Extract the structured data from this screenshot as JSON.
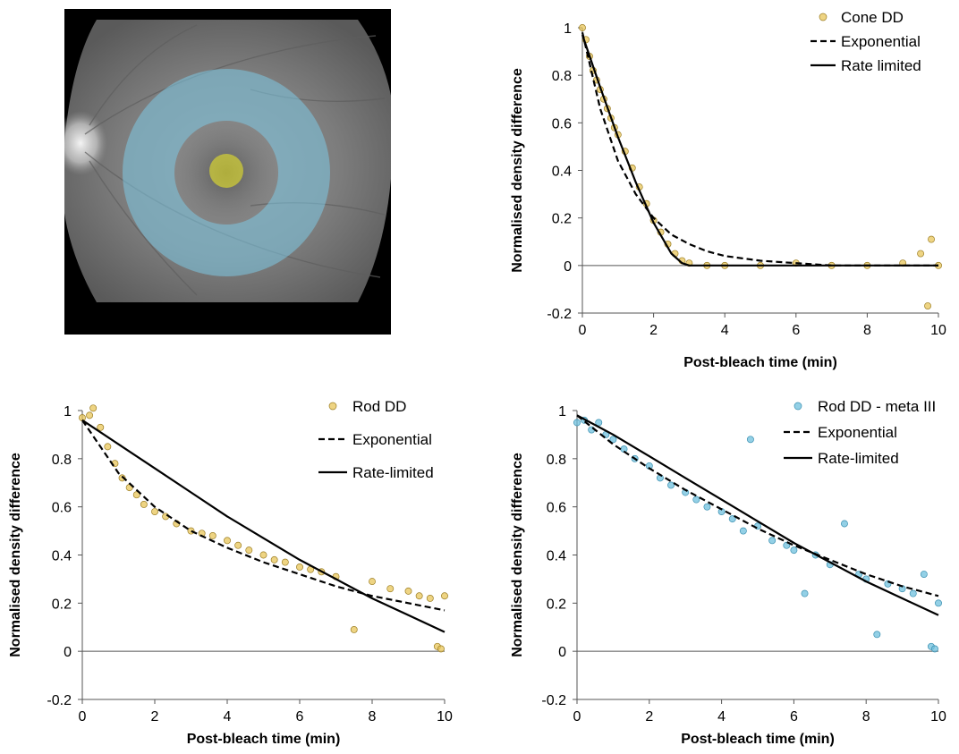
{
  "figure": {
    "fundus_image": {
      "description": "retinal fundus photograph",
      "regions": [
        {
          "name": "rod-annulus",
          "color": "#7ec8e3"
        },
        {
          "name": "cone-center",
          "color": "#e8e52a"
        }
      ]
    }
  },
  "chart_data": [
    {
      "id": "cone",
      "type": "scatter",
      "xlabel": "Post-bleach time (min)",
      "ylabel": "Normalised density difference",
      "xlim": [
        0,
        10
      ],
      "ylim": [
        -0.2,
        1
      ],
      "xticks": [
        0,
        2,
        4,
        6,
        8,
        10
      ],
      "yticks": [
        -0.2,
        0,
        0.2,
        0.4,
        0.6,
        0.8,
        1
      ],
      "point_color": "#e8c65a",
      "legend": [
        "Cone DD",
        "Exponential",
        "Rate limited"
      ],
      "series": [
        {
          "name": "Cone DD",
          "kind": "points",
          "x": [
            0,
            0.1,
            0.2,
            0.3,
            0.4,
            0.5,
            0.6,
            0.7,
            0.8,
            0.9,
            1.0,
            1.2,
            1.4,
            1.6,
            1.8,
            2.0,
            2.2,
            2.4,
            2.6,
            2.8,
            3.0,
            3.5,
            4.0,
            5.0,
            6.0,
            7.0,
            8.0,
            9.0,
            9.5,
            9.7,
            9.8,
            10.0
          ],
          "y": [
            1.0,
            0.95,
            0.88,
            0.82,
            0.78,
            0.74,
            0.7,
            0.66,
            0.62,
            0.58,
            0.55,
            0.48,
            0.41,
            0.33,
            0.26,
            0.19,
            0.14,
            0.09,
            0.05,
            0.02,
            0.01,
            0.0,
            0.0,
            0.0,
            0.01,
            0.0,
            0.0,
            0.01,
            0.05,
            -0.17,
            0.11,
            0.0
          ]
        },
        {
          "name": "Exponential",
          "kind": "curve",
          "style": "dashed",
          "x": [
            0,
            0.5,
            1,
            1.5,
            2,
            2.5,
            3,
            3.5,
            4,
            5,
            6,
            7,
            8,
            10
          ],
          "y": [
            0.98,
            0.66,
            0.44,
            0.3,
            0.2,
            0.13,
            0.09,
            0.06,
            0.04,
            0.02,
            0.01,
            0.0,
            0.0,
            0.0
          ]
        },
        {
          "name": "Rate limited",
          "kind": "curve",
          "style": "solid",
          "x": [
            0,
            0.5,
            1,
            1.5,
            2,
            2.5,
            2.8,
            3,
            10
          ],
          "y": [
            0.97,
            0.75,
            0.54,
            0.35,
            0.18,
            0.05,
            0.01,
            0.0,
            0.0
          ]
        }
      ]
    },
    {
      "id": "rod",
      "type": "scatter",
      "xlabel": "Post-bleach time (min)",
      "ylabel": "Normalised density difference",
      "xlim": [
        0,
        10
      ],
      "ylim": [
        -0.2,
        1
      ],
      "xticks": [
        0,
        2,
        4,
        6,
        8,
        10
      ],
      "yticks": [
        -0.2,
        0,
        0.2,
        0.4,
        0.6,
        0.8,
        1
      ],
      "point_color": "#e8c65a",
      "legend": [
        "Rod DD",
        "Exponential",
        "Rate-limited"
      ],
      "series": [
        {
          "name": "Rod DD",
          "kind": "points",
          "x": [
            0,
            0.2,
            0.3,
            0.5,
            0.7,
            0.9,
            1.1,
            1.3,
            1.5,
            1.7,
            2.0,
            2.3,
            2.6,
            3.0,
            3.3,
            3.6,
            4.0,
            4.3,
            4.6,
            5.0,
            5.3,
            5.6,
            6.0,
            6.3,
            6.6,
            7.0,
            7.5,
            8.0,
            8.5,
            9.0,
            9.3,
            9.6,
            9.8,
            9.9,
            10.0
          ],
          "y": [
            0.97,
            0.98,
            1.01,
            0.93,
            0.85,
            0.78,
            0.72,
            0.68,
            0.65,
            0.61,
            0.58,
            0.56,
            0.53,
            0.5,
            0.49,
            0.48,
            0.46,
            0.44,
            0.42,
            0.4,
            0.38,
            0.37,
            0.35,
            0.34,
            0.33,
            0.31,
            0.09,
            0.29,
            0.26,
            0.25,
            0.23,
            0.22,
            0.02,
            0.01,
            0.23
          ]
        },
        {
          "name": "Exponential",
          "kind": "curve",
          "style": "dashed",
          "x": [
            0,
            1,
            2,
            3,
            4,
            5,
            6,
            7,
            8,
            9,
            10
          ],
          "y": [
            0.96,
            0.74,
            0.6,
            0.5,
            0.43,
            0.37,
            0.32,
            0.27,
            0.23,
            0.2,
            0.17
          ]
        },
        {
          "name": "Rate-limited",
          "kind": "curve",
          "style": "solid",
          "x": [
            0,
            1,
            2,
            3,
            4,
            5,
            6,
            7,
            8,
            9,
            10
          ],
          "y": [
            0.96,
            0.86,
            0.76,
            0.66,
            0.56,
            0.47,
            0.38,
            0.3,
            0.22,
            0.15,
            0.08
          ]
        }
      ]
    },
    {
      "id": "meta",
      "type": "scatter",
      "xlabel": "Post-bleach time (min)",
      "ylabel": "Normalised density difference",
      "xlim": [
        0,
        10
      ],
      "ylim": [
        -0.2,
        1
      ],
      "xticks": [
        0,
        2,
        4,
        6,
        8,
        10
      ],
      "yticks": [
        -0.2,
        0,
        0.2,
        0.4,
        0.6,
        0.8,
        1
      ],
      "point_color": "#6fc0dd",
      "legend": [
        "Rod DD - meta III",
        "Exponential",
        "Rate-limited"
      ],
      "series": [
        {
          "name": "Rod DD - meta III",
          "kind": "points",
          "x": [
            0,
            0.2,
            0.4,
            0.6,
            0.8,
            1.0,
            1.3,
            1.6,
            2.0,
            2.3,
            2.6,
            3.0,
            3.3,
            3.6,
            4.0,
            4.3,
            4.6,
            4.8,
            5.0,
            5.4,
            5.8,
            6.0,
            6.3,
            6.6,
            7.0,
            7.4,
            7.8,
            8.0,
            8.3,
            8.6,
            9.0,
            9.3,
            9.6,
            9.8,
            9.9,
            10.0
          ],
          "y": [
            0.95,
            0.96,
            0.92,
            0.95,
            0.9,
            0.88,
            0.84,
            0.8,
            0.77,
            0.72,
            0.69,
            0.66,
            0.63,
            0.6,
            0.58,
            0.55,
            0.5,
            0.88,
            0.52,
            0.46,
            0.44,
            0.42,
            0.24,
            0.4,
            0.36,
            0.53,
            0.32,
            0.3,
            0.07,
            0.28,
            0.26,
            0.24,
            0.32,
            0.02,
            0.01,
            0.2
          ]
        },
        {
          "name": "Exponential",
          "kind": "curve",
          "style": "dashed",
          "x": [
            0,
            1,
            2,
            3,
            4,
            5,
            6,
            7,
            8,
            9,
            10
          ],
          "y": [
            0.98,
            0.86,
            0.76,
            0.67,
            0.59,
            0.51,
            0.44,
            0.38,
            0.32,
            0.27,
            0.23
          ]
        },
        {
          "name": "Rate-limited",
          "kind": "curve",
          "style": "solid",
          "x": [
            0,
            1,
            2,
            3,
            4,
            5,
            6,
            7,
            8,
            9,
            10
          ],
          "y": [
            0.98,
            0.9,
            0.81,
            0.72,
            0.63,
            0.54,
            0.45,
            0.37,
            0.29,
            0.22,
            0.15
          ]
        }
      ]
    }
  ]
}
